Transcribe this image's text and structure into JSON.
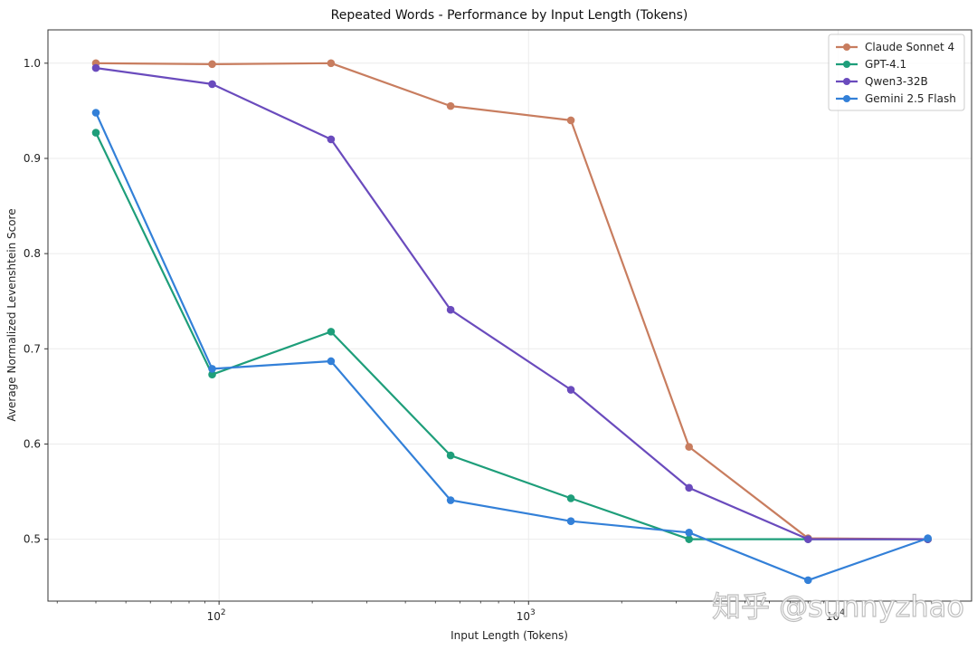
{
  "chart_data": {
    "type": "line",
    "title": "Repeated Words - Performance by Input Length (Tokens)",
    "xlabel": "Input Length (Tokens)",
    "ylabel": "Average Normalized Levenshtein Score",
    "x_scale": "log",
    "xlim": [
      28,
      27000
    ],
    "ylim": [
      0.435,
      1.035
    ],
    "grid": true,
    "legend_position": "top-right",
    "x_ticks": [
      {
        "value": 100,
        "base": "10",
        "exp": "2"
      },
      {
        "value": 1000,
        "base": "10",
        "exp": "3"
      },
      {
        "value": 10000,
        "base": "10",
        "exp": "4"
      }
    ],
    "y_ticks": [
      {
        "value": 0.5,
        "label": "0.5"
      },
      {
        "value": 0.6,
        "label": "0.6"
      },
      {
        "value": 0.7,
        "label": "0.7"
      },
      {
        "value": 0.8,
        "label": "0.8"
      },
      {
        "value": 0.9,
        "label": "0.9"
      },
      {
        "value": 1.0,
        "label": "1.0"
      }
    ],
    "x": [
      40,
      95,
      230,
      560,
      1370,
      3300,
      8000,
      19500
    ],
    "series": [
      {
        "name": "Claude Sonnet 4",
        "color": "#c87d5f",
        "values": [
          1.0,
          0.999,
          1.0,
          0.955,
          0.94,
          0.597,
          0.501,
          0.5
        ]
      },
      {
        "name": "GPT-4.1",
        "color": "#1e9e7a",
        "values": [
          0.927,
          0.673,
          0.718,
          0.588,
          0.543,
          0.5,
          0.5,
          0.5
        ]
      },
      {
        "name": "Qwen3-32B",
        "color": "#6a4bbd",
        "values": [
          0.995,
          0.978,
          0.92,
          0.741,
          0.657,
          0.554,
          0.5,
          0.5
        ]
      },
      {
        "name": "Gemini 2.5 Flash",
        "color": "#3380d8",
        "values": [
          0.948,
          0.679,
          0.687,
          0.541,
          0.519,
          0.507,
          0.457,
          0.501
        ]
      }
    ]
  },
  "watermark": {
    "text": "知乎 @sunnyzhao"
  }
}
